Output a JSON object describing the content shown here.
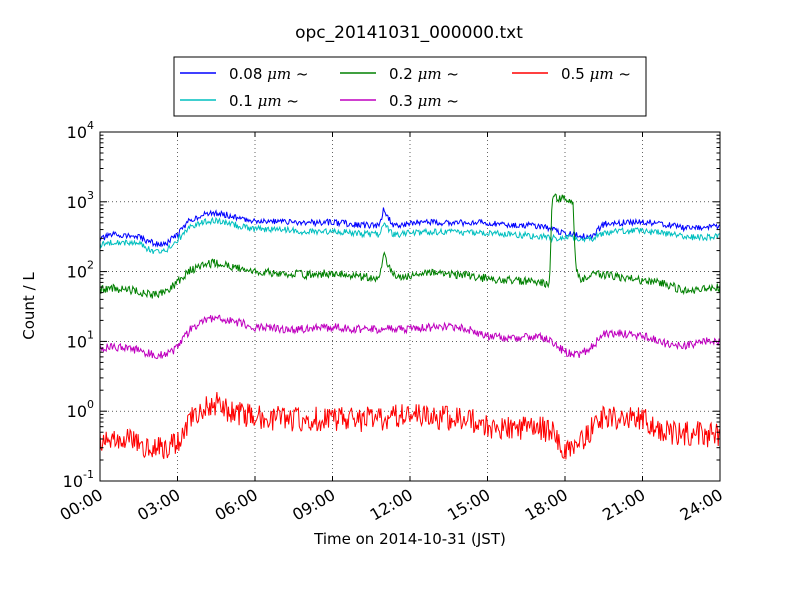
{
  "chart_data": {
    "type": "line",
    "title": "opc_20141031_000000.txt",
    "xlabel": "Time on 2014-10-31 (JST)",
    "ylabel": "Count / L",
    "yscale": "log",
    "ylim": [
      0.1,
      10000
    ],
    "xlim": [
      0,
      24
    ],
    "grid": true,
    "legend_position": "top",
    "x_ticks": [
      {
        "value": 0,
        "label": "00:00"
      },
      {
        "value": 3,
        "label": "03:00"
      },
      {
        "value": 6,
        "label": "06:00"
      },
      {
        "value": 9,
        "label": "09:00"
      },
      {
        "value": 12,
        "label": "12:00"
      },
      {
        "value": 15,
        "label": "15:00"
      },
      {
        "value": 18,
        "label": "18:00"
      },
      {
        "value": 21,
        "label": "21:00"
      },
      {
        "value": 24,
        "label": "24:00"
      }
    ],
    "y_ticks": [
      {
        "value": 0.1,
        "base": "10",
        "exp": "-1"
      },
      {
        "value": 1,
        "base": "10",
        "exp": "0"
      },
      {
        "value": 10,
        "base": "10",
        "exp": "1"
      },
      {
        "value": 100,
        "base": "10",
        "exp": "2"
      },
      {
        "value": 1000,
        "base": "10",
        "exp": "3"
      },
      {
        "value": 10000,
        "base": "10",
        "exp": "4"
      }
    ],
    "series": [
      {
        "name": "0.08 μm ~",
        "label_main": "0.08 ",
        "label_unit": "μm",
        "label_tail": " ~",
        "color": "#0000ff",
        "x": [
          0,
          0.5,
          1,
          1.5,
          2,
          2.5,
          3,
          3.5,
          4,
          4.5,
          5,
          5.5,
          6,
          7,
          8,
          9,
          10,
          10.8,
          11,
          11.1,
          11.3,
          11.5,
          12,
          13,
          14,
          15,
          16,
          17,
          17.5,
          18,
          18.5,
          19,
          19.5,
          20,
          21,
          22,
          22.5,
          23,
          23.5,
          24
        ],
        "y": [
          290,
          340,
          330,
          310,
          260,
          240,
          340,
          560,
          650,
          690,
          640,
          560,
          540,
          520,
          500,
          510,
          470,
          450,
          820,
          650,
          480,
          460,
          500,
          510,
          500,
          500,
          470,
          450,
          400,
          360,
          340,
          310,
          480,
          500,
          520,
          470,
          430,
          420,
          430,
          450
        ]
      },
      {
        "name": "0.1 μm ~",
        "label_main": "0.1 ",
        "label_unit": "μm",
        "label_tail": " ~",
        "color": "#00bfbf",
        "x": [
          0,
          0.5,
          1,
          1.5,
          2,
          2.5,
          3,
          3.5,
          4,
          4.5,
          5,
          5.5,
          6,
          7,
          8,
          9,
          10,
          10.8,
          11,
          11.1,
          11.3,
          11.5,
          12,
          13,
          14,
          15,
          16,
          17,
          17.5,
          18,
          18.5,
          19,
          19.5,
          20,
          21,
          22,
          22.5,
          23,
          23.5,
          24
        ],
        "y": [
          240,
          270,
          260,
          250,
          200,
          190,
          280,
          450,
          510,
          540,
          500,
          440,
          410,
          400,
          370,
          380,
          350,
          340,
          500,
          450,
          350,
          340,
          360,
          370,
          360,
          360,
          340,
          320,
          300,
          310,
          300,
          290,
          360,
          380,
          380,
          350,
          320,
          310,
          310,
          330
        ]
      },
      {
        "name": "0.2 μm ~",
        "label_main": "0.2 ",
        "label_unit": "μm",
        "label_tail": " ~",
        "color": "#008000",
        "x": [
          0,
          0.5,
          1,
          1.5,
          2,
          2.5,
          3,
          3.5,
          4,
          4.5,
          5,
          5.5,
          6,
          7,
          8,
          9,
          10,
          10.8,
          11,
          11.1,
          11.3,
          11.5,
          12,
          13,
          14,
          15,
          16,
          17,
          17.4,
          17.5,
          17.6,
          18,
          18.3,
          18.4,
          18.5,
          18.6,
          19,
          19.5,
          20,
          21,
          22,
          22.5,
          23,
          23.5,
          24
        ],
        "y": [
          55,
          58,
          55,
          52,
          46,
          50,
          70,
          105,
          125,
          135,
          120,
          110,
          100,
          95,
          90,
          95,
          85,
          82,
          180,
          130,
          95,
          85,
          90,
          95,
          90,
          80,
          75,
          70,
          65,
          1200,
          1150,
          1100,
          1050,
          150,
          85,
          75,
          90,
          90,
          85,
          75,
          65,
          55,
          55,
          58,
          60
        ]
      },
      {
        "name": "0.3 μm ~",
        "label_main": "0.3 ",
        "label_unit": "μm",
        "label_tail": " ~",
        "color": "#bf00bf",
        "x": [
          0,
          0.5,
          1,
          1.5,
          2,
          2.5,
          3,
          3.5,
          4,
          4.5,
          5,
          5.5,
          6,
          7,
          8,
          9,
          10,
          11,
          12,
          13,
          14,
          15,
          16,
          17,
          17.5,
          18,
          18.5,
          19,
          19.5,
          20,
          21,
          22,
          22.5,
          23,
          23.5,
          24
        ],
        "y": [
          8,
          8.5,
          8,
          7.5,
          6.5,
          6.5,
          8,
          15,
          20,
          22,
          20,
          18,
          16,
          15,
          15,
          16,
          15,
          15,
          15,
          16,
          16,
          12,
          11,
          12,
          10,
          7,
          6.5,
          8,
          13,
          13,
          12,
          9,
          8.5,
          9,
          10,
          10
        ]
      },
      {
        "name": "0.5 μm ~",
        "label_main": "0.5 ",
        "label_unit": "μm",
        "label_tail": " ~",
        "color": "#ff0000",
        "x": [
          0,
          0.5,
          1,
          1.5,
          2,
          2.5,
          3,
          3.5,
          4,
          4.5,
          5,
          5.5,
          6,
          7,
          8,
          9,
          10,
          11,
          12,
          13,
          14,
          15,
          16,
          17,
          17.5,
          18,
          18.5,
          19,
          19.5,
          20,
          21,
          22,
          22.5,
          23,
          23.5,
          24
        ],
        "y": [
          0.4,
          0.45,
          0.4,
          0.35,
          0.3,
          0.3,
          0.35,
          0.8,
          1.1,
          1.3,
          1.0,
          0.9,
          0.8,
          0.8,
          0.75,
          0.8,
          0.75,
          0.8,
          0.85,
          0.8,
          0.8,
          0.6,
          0.55,
          0.6,
          0.5,
          0.25,
          0.3,
          0.55,
          0.8,
          0.8,
          0.75,
          0.5,
          0.45,
          0.5,
          0.45,
          0.45
        ]
      }
    ]
  }
}
